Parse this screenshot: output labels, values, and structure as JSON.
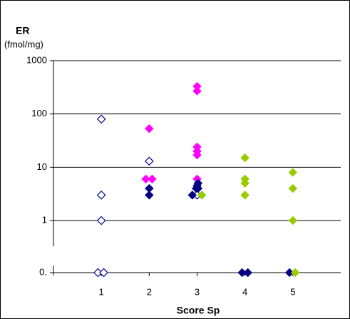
{
  "chart_data": {
    "type": "scatter",
    "y_title": "ER",
    "y_unit": "(fmol/mg)",
    "x_title": "Score Sp",
    "log_y": true,
    "axis_break": true,
    "grid": true,
    "xlim": [
      0,
      6
    ],
    "xticks": [
      1,
      2,
      3,
      4,
      5
    ],
    "ylim": [
      0,
      1000
    ],
    "yticks": [
      1000,
      100,
      10,
      1,
      {
        "value": 0,
        "label": "0."
      }
    ],
    "series": [
      {
        "color": "#00008b",
        "filled": false,
        "x": [
          1,
          1,
          1,
          0.93,
          1.05,
          2,
          3
        ],
        "values": [
          80,
          3,
          1,
          0,
          0,
          13,
          3
        ]
      },
      {
        "color": "#ff00ff",
        "filled": true,
        "x": [
          2,
          1.93,
          2.06,
          3,
          3,
          3,
          3,
          3,
          3
        ],
        "values": [
          53,
          6,
          6,
          330,
          270,
          24,
          20,
          17,
          6
        ]
      },
      {
        "color": "#000080",
        "filled": true,
        "x": [
          2,
          2,
          3.02,
          3,
          2.98,
          2.9,
          3.02,
          3.94,
          4.06,
          4.93
        ],
        "values": [
          4,
          3,
          5,
          4.5,
          4,
          3,
          4,
          0,
          0,
          0
        ]
      },
      {
        "color": "#99cc00",
        "filled": true,
        "x": [
          3.1,
          4,
          4,
          4,
          4,
          5,
          5,
          5,
          5.05
        ],
        "values": [
          3,
          15,
          6,
          5,
          3,
          8,
          4,
          1,
          0
        ]
      }
    ]
  }
}
